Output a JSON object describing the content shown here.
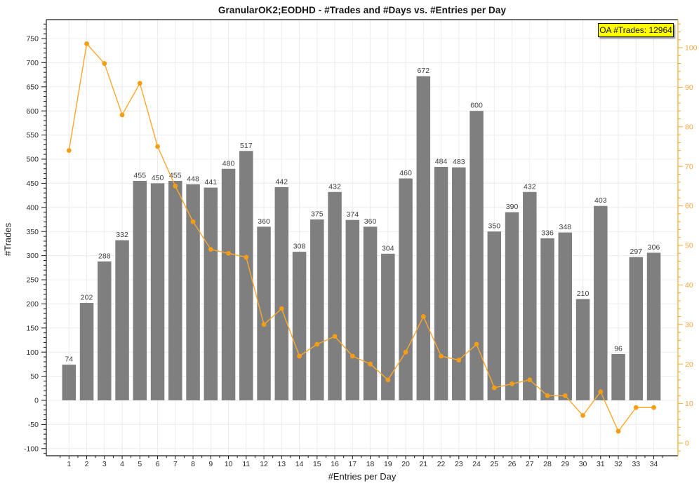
{
  "window": {
    "title": "GranularOK2;EODHD - #Trades and #Days vs. #Entries per Day"
  },
  "chart_data": {
    "type": "bar",
    "title": "GranularOK2;EODHD - #Trades and #Days vs. #Entries per Day",
    "xlabel": "#Entries per Day",
    "ylabel_left": "#Trades",
    "annotation": "OA #Trades: 12964",
    "categories": [
      1,
      2,
      3,
      4,
      5,
      6,
      7,
      8,
      9,
      10,
      11,
      12,
      13,
      14,
      15,
      16,
      17,
      18,
      19,
      20,
      21,
      22,
      23,
      24,
      25,
      26,
      27,
      28,
      29,
      30,
      31,
      32,
      33,
      34
    ],
    "series": [
      {
        "name": "#Trades",
        "type": "bar",
        "axis": "left",
        "color": "#7f7f7f",
        "values": [
          74,
          202,
          288,
          332,
          455,
          450,
          455,
          448,
          441,
          480,
          517,
          360,
          442,
          308,
          375,
          432,
          374,
          360,
          304,
          460,
          672,
          484,
          483,
          600,
          350,
          390,
          432,
          336,
          348,
          210,
          403,
          96,
          297,
          306
        ],
        "labels_shown": true
      },
      {
        "name": "#Days",
        "type": "line",
        "axis": "right",
        "color": "#fba82c",
        "marker_color": "#f59d14",
        "values": [
          74,
          101,
          96,
          83,
          91,
          75,
          65,
          56,
          49,
          48,
          47,
          30,
          34,
          22,
          25,
          27,
          22,
          20,
          16,
          23,
          32,
          22,
          21,
          25,
          14,
          15,
          16,
          12,
          12,
          7,
          13,
          3,
          9,
          9
        ]
      }
    ],
    "left_axis": {
      "min": -100,
      "max": 750,
      "major_step": 50,
      "minor_step": 10,
      "label_color": "#2b2b2b",
      "line_color": "#1a1a1a"
    },
    "right_axis": {
      "min": 0,
      "max": 100,
      "major_step": 10,
      "minor_step": 2,
      "label_color": "#f8a43c",
      "line_color": "#f9a825"
    },
    "grid": true,
    "grid_color": "#ececec",
    "legend": "none",
    "bar_label_color": "#3d3d3d",
    "badge": {
      "text": "OA #Trades: 12964",
      "bg": "#ffff00",
      "border": "#111111"
    }
  }
}
